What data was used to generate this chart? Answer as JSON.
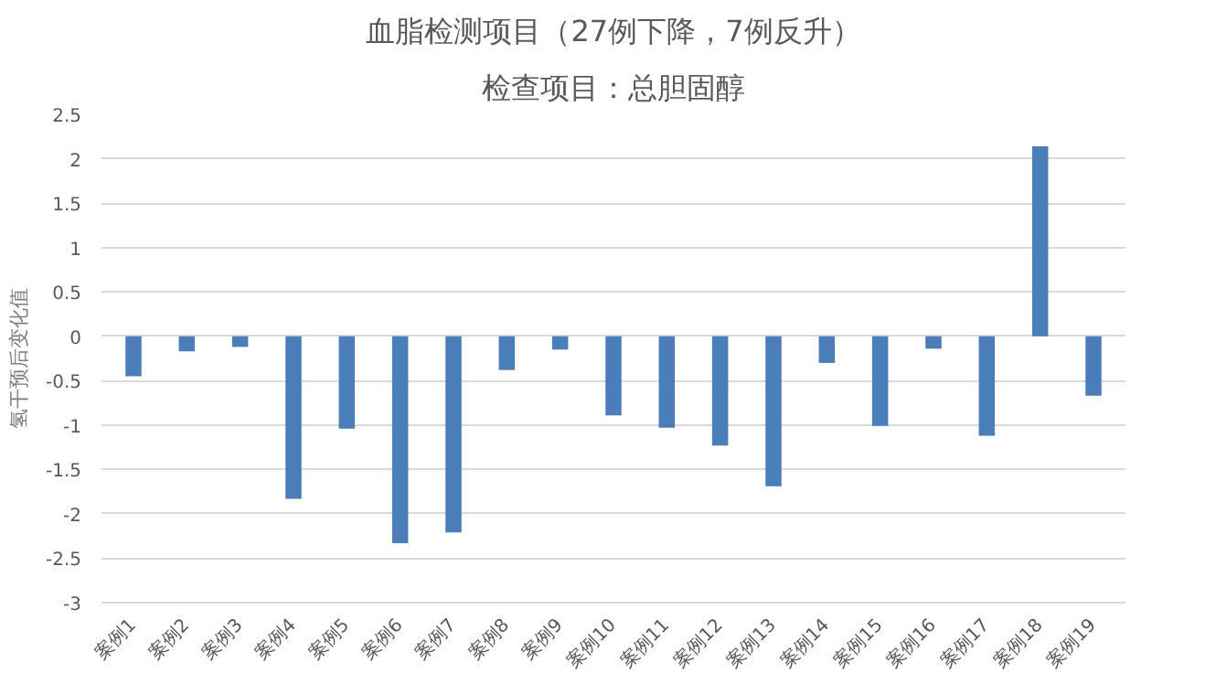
{
  "chart_data": {
    "type": "bar",
    "title": "血脂检测项目（27例下降，7例反升）",
    "subtitle": "检查项目：总胆固醇",
    "ylabel": "氢干预后变化值",
    "categories": [
      "案例1",
      "案例2",
      "案例3",
      "案例4",
      "案例5",
      "案例6",
      "案例7",
      "案例8",
      "案例9",
      "案例10",
      "案例11",
      "案例12",
      "案例13",
      "案例14",
      "案例15",
      "案例16",
      "案例17",
      "案例18",
      "案例19"
    ],
    "values": [
      -0.45,
      -0.17,
      -0.12,
      -1.83,
      -1.04,
      -2.33,
      -2.21,
      -0.38,
      -0.15,
      -0.89,
      -1.03,
      -1.23,
      -1.69,
      -0.3,
      -1.01,
      -0.14,
      -1.12,
      2.14,
      -0.67
    ],
    "color": "#4a7ebb",
    "ylim": [
      -3,
      2.5
    ],
    "yticks": [
      {
        "value": -3,
        "label": "-3"
      },
      {
        "value": -2.5,
        "label": "-2.5"
      },
      {
        "value": -2,
        "label": "-2"
      },
      {
        "value": -1.5,
        "label": "-1.5"
      },
      {
        "value": -1,
        "label": "-1"
      },
      {
        "value": -0.5,
        "label": "-0.5"
      },
      0,
      0.5,
      1,
      1.5,
      2,
      2.5
    ],
    "grid": "y"
  }
}
